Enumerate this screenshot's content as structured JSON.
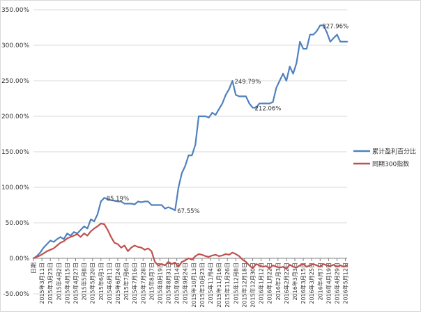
{
  "chart_data": {
    "type": "line",
    "title": "",
    "xlabel": "",
    "ylabel": "",
    "ylim": [
      -50,
      350
    ],
    "y_ticks": [
      "-50.00%",
      "0.00%",
      "50.00%",
      "100.00%",
      "150.00%",
      "200.00%",
      "250.00%",
      "300.00%",
      "350.00%"
    ],
    "y_tick_values": [
      -50,
      0,
      50,
      100,
      150,
      200,
      250,
      300,
      350
    ],
    "x_ticks": [
      "日期",
      "2015年3月11日",
      "2015年3月23日",
      "2015年4月2日",
      "2015年4月15日",
      "2015年4月27日",
      "2015年5月8日",
      "2015年5月20日",
      "2015年6月1日",
      "2015年6月11日",
      "2015年6月24日",
      "2015年7月6日",
      "2015年7月16日",
      "2015年7月28日",
      "2015年8月7日",
      "2015年8月19日",
      "2015年8月31日",
      "2015年9月14日",
      "2015年9月24日",
      "2015年10月13日",
      "2015年10月23日",
      "2015年11月4日",
      "2015年11月16日",
      "2015年11月26日",
      "2015年12月8日",
      "2015年12月18日",
      "2015年12月30日",
      "2016年1月12日",
      "2016年1月22日",
      "2016年2月3日",
      "2016年2月22日",
      "2016年3月3日",
      "2016年3月15日",
      "2016年3月25日",
      "2016年4月7日",
      "2016年4月19日",
      "2016年4月29日",
      "2016年5月12日"
    ],
    "x_tick_positions": [
      0,
      5,
      10,
      15,
      20,
      25,
      30,
      35,
      40,
      45,
      50,
      55,
      60,
      65,
      70,
      75,
      80,
      85,
      90,
      95,
      100,
      105,
      110,
      115,
      120,
      125,
      130,
      135,
      140,
      145,
      150,
      155,
      160,
      165,
      170,
      175,
      180,
      185
    ],
    "grid": "horizontal",
    "legend_position": "right",
    "series": [
      {
        "name": "累计盈利百分比",
        "color": "#4f81bd",
        "x": [
          0,
          2,
          4,
          6,
          8,
          10,
          12,
          14,
          16,
          18,
          20,
          22,
          24,
          26,
          28,
          30,
          32,
          34,
          36,
          38,
          40,
          42,
          44,
          46,
          48,
          50,
          52,
          54,
          56,
          58,
          60,
          62,
          64,
          66,
          68,
          70,
          72,
          74,
          76,
          78,
          80,
          82,
          84,
          86,
          88,
          90,
          92,
          94,
          96,
          98,
          100,
          102,
          104,
          106,
          108,
          110,
          112,
          114,
          116,
          118,
          120,
          122,
          124,
          126,
          128,
          130,
          132,
          134,
          136,
          138,
          140,
          142,
          144,
          146,
          148,
          150,
          152,
          154,
          156,
          158,
          160,
          162,
          164,
          166,
          168,
          170,
          172,
          174,
          176,
          178,
          180,
          182,
          184,
          186
        ],
        "y": [
          0,
          3,
          8,
          15,
          20,
          25,
          23,
          27,
          30,
          27,
          35,
          32,
          37,
          35,
          40,
          45,
          42,
          55,
          52,
          62,
          80,
          85.19,
          83,
          82,
          81,
          80,
          80,
          77,
          77,
          77,
          76,
          80,
          79,
          80,
          80,
          75,
          75,
          75,
          75,
          70,
          72,
          70,
          67.55,
          100,
          120,
          130,
          145,
          145,
          160,
          200,
          200,
          200,
          198,
          205,
          202,
          210,
          218,
          230,
          238,
          249.79,
          230,
          228,
          228,
          228,
          218,
          212.06,
          212,
          218,
          218,
          218,
          218,
          220,
          240,
          250,
          260,
          250,
          270,
          260,
          275,
          305,
          295,
          295,
          315,
          315,
          320,
          327.96,
          328,
          318,
          305,
          310,
          315,
          305,
          305,
          305
        ]
      },
      {
        "name": "同期300指数",
        "color": "#c0504d",
        "x": [
          0,
          2,
          4,
          6,
          8,
          10,
          12,
          14,
          16,
          18,
          20,
          22,
          24,
          26,
          28,
          30,
          32,
          34,
          36,
          38,
          40,
          42,
          44,
          46,
          48,
          50,
          52,
          54,
          56,
          58,
          60,
          62,
          64,
          66,
          68,
          70,
          72,
          74,
          76,
          78,
          80,
          82,
          84,
          86,
          88,
          90,
          92,
          94,
          96,
          98,
          100,
          102,
          104,
          106,
          108,
          110,
          112,
          114,
          116,
          118,
          120,
          122,
          124,
          126,
          128,
          130,
          132,
          134,
          136,
          138,
          140,
          142,
          144,
          146,
          148,
          150,
          152,
          154,
          156,
          158,
          160,
          162,
          164,
          166,
          168,
          170,
          172,
          174,
          176,
          178,
          180,
          182,
          184,
          186
        ],
        "y": [
          0,
          2,
          4,
          7,
          10,
          12,
          14,
          18,
          22,
          24,
          28,
          30,
          32,
          34,
          30,
          35,
          32,
          38,
          42,
          45,
          49,
          48,
          40,
          30,
          22,
          20,
          15,
          18,
          10,
          15,
          18,
          16,
          15,
          12,
          14,
          10,
          -5,
          -10,
          -8,
          -10,
          -5,
          -8,
          -6,
          -12,
          -5,
          -3,
          0,
          -2,
          3,
          6,
          5,
          3,
          2,
          4,
          5,
          3,
          4,
          6,
          5,
          8,
          6,
          3,
          -2,
          -5,
          -10,
          -14,
          -8,
          -10,
          -12,
          -11,
          -14,
          -10,
          -12,
          -13,
          -12,
          -15,
          -9,
          -12,
          -13,
          -10,
          -8,
          -12,
          -10,
          -8,
          -10,
          -12,
          -8,
          -10,
          -11,
          -9,
          -12,
          -10,
          -12,
          -10
        ]
      }
    ],
    "annotations": [
      {
        "text": "85.19%",
        "x": 42,
        "y": 85.19
      },
      {
        "text": "67.55%",
        "x": 84,
        "y": 67.55
      },
      {
        "text": "249.79%",
        "x": 118,
        "y": 249.79
      },
      {
        "text": "212.06%",
        "x": 130,
        "y": 212.06
      },
      {
        "text": "327.96%",
        "x": 170,
        "y": 327.96
      }
    ]
  }
}
